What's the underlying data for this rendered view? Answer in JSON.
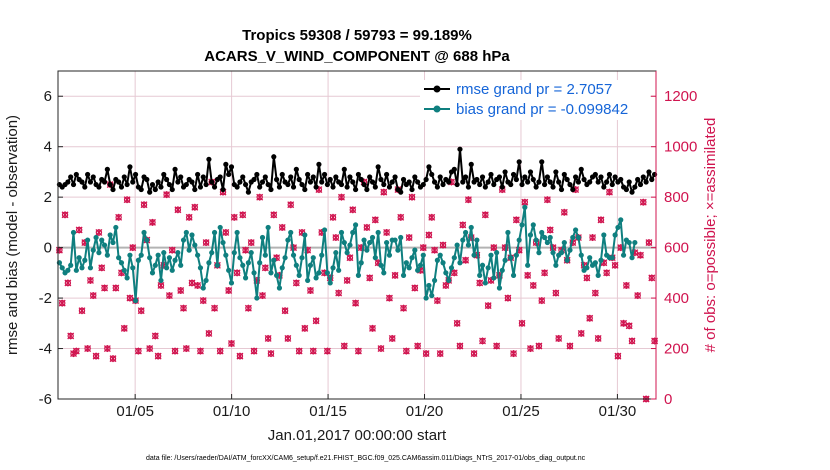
{
  "chart_data": {
    "type": "line",
    "title_line1": "Tropics 59308 / 59793 = 99.189%",
    "title_line2": "ACARS_V_WIND_COMPONENT @ 688 hPa",
    "xlabel": "Jan.01,2017 00:00:00 start",
    "ylabel_left": "rmse and bias (model - observation)",
    "ylabel_right": "# of obs: o=possible; ×=assimilated",
    "footer": "data file: /Users/raeder/DAI/ATM_forcXX/CAM6_setup/f.e21.FHIST_BGC.f09_025.CAM6assim.011/Diags_NTrS_2017-01/obs_diag_output.nc",
    "x_tick_labels": [
      "01/05",
      "01/10",
      "01/15",
      "01/20",
      "01/25",
      "01/30"
    ],
    "x_tick_days": [
      5,
      10,
      15,
      20,
      25,
      30
    ],
    "x_range_days": [
      1,
      32
    ],
    "left_ylim": [
      -6,
      7
    ],
    "left_ticks": [
      -6,
      -4,
      -2,
      0,
      2,
      4,
      6
    ],
    "right_ylim": [
      0,
      1300
    ],
    "right_ticks": [
      0,
      200,
      400,
      600,
      800,
      1000,
      1200
    ],
    "legend": [
      {
        "label": "rmse grand pr = 2.7057",
        "color": "#000000"
      },
      {
        "label": "bias grand pr = -0.099842",
        "color": "#0f7f7f"
      }
    ],
    "colors": {
      "rmse": "#000000",
      "bias": "#0f7f7f",
      "obs": "#d0144f",
      "zero_line": "#b3b3b3",
      "grid": "#e6c9d3"
    },
    "series": [
      {
        "name": "rmse",
        "values": [
          2.5,
          2.4,
          2.5,
          2.6,
          2.8,
          2.5,
          2.9,
          2.7,
          2.6,
          2.4,
          2.9,
          2.6,
          2.8,
          2.5,
          2.4,
          2.7,
          2.6,
          3.1,
          2.5,
          2.3,
          2.7,
          2.6,
          2.4,
          2.8,
          2.5,
          3.2,
          2.6,
          2.9,
          2.4,
          2.3,
          2.8,
          2.7,
          2.2,
          2.5,
          2.3,
          2.6,
          2.4,
          2.9,
          2.7,
          2.5,
          2.3,
          3.1,
          2.6,
          2.8,
          2.4,
          2.5,
          2.7,
          2.6,
          2.3,
          2.9,
          2.4,
          2.8,
          2.5,
          3.5,
          2.6,
          2.4,
          2.7,
          2.8,
          2.3,
          3.3,
          2.9,
          3.2,
          2.5,
          2.4,
          2.6,
          2.8,
          2.5,
          2.2,
          2.6,
          2.7,
          2.9,
          2.4,
          2.6,
          2.8,
          2.5,
          2.3,
          3.6,
          2.7,
          2.4,
          2.9,
          2.6,
          2.5,
          2.8,
          2.4,
          3.1,
          2.7,
          2.5,
          2.3,
          2.9,
          2.6,
          2.8,
          2.4,
          3.3,
          2.6,
          2.9,
          2.5,
          2.7,
          2.4,
          2.8,
          2.6,
          2.5,
          3.1,
          2.4,
          2.8,
          2.6,
          2.3,
          2.9,
          2.7,
          2.5,
          2.3,
          2.8,
          2.6,
          2.4,
          3.2,
          2.7,
          2.5,
          2.9,
          2.4,
          2.6,
          2.8,
          2.3,
          2.2,
          2.7,
          2.5,
          2.6,
          2.3,
          2.8,
          2.6,
          2.4,
          2.5,
          2.7,
          3.2,
          2.9,
          2.6,
          2.4,
          2.8,
          2.5,
          2.7,
          2.6,
          3.0,
          3.1,
          2.5,
          3.9,
          2.6,
          2.8,
          2.4,
          3.3,
          2.6,
          2.7,
          2.5,
          2.8,
          2.4,
          2.6,
          2.9,
          2.5,
          2.7,
          2.8,
          2.4,
          3.0,
          2.6,
          2.5,
          2.9,
          2.7,
          3.4,
          2.5,
          2.8,
          2.6,
          3.0,
          2.7,
          2.4,
          2.6,
          3.4,
          2.5,
          2.8,
          2.6,
          2.4,
          3.0,
          2.6,
          2.3,
          2.9,
          2.7,
          2.5,
          2.3,
          2.8,
          2.6,
          3.1,
          2.7,
          2.5,
          2.6,
          2.8,
          2.9,
          2.6,
          2.8,
          2.4,
          2.6,
          2.9,
          2.5,
          2.8,
          2.6,
          2.7,
          2.4,
          2.3,
          2.6,
          2.2,
          2.4,
          2.7,
          2.5,
          2.8,
          2.6,
          3.0,
          2.7,
          2.9
        ]
      },
      {
        "name": "bias",
        "values": [
          -0.6,
          -0.8,
          -1.0,
          -0.9,
          -0.7,
          0.6,
          -0.9,
          -0.4,
          -0.8,
          -0.5,
          0.3,
          -0.8,
          -0.1,
          0.4,
          -0.2,
          0.3,
          0.1,
          -0.3,
          0.5,
          0.2,
          0.8,
          -0.4,
          -0.6,
          -0.9,
          -1.2,
          -0.3,
          -0.8,
          -2.1,
          -0.5,
          -0.3,
          0.6,
          0.3,
          -0.4,
          -1.0,
          -0.7,
          -0.3,
          -1.3,
          -0.2,
          -0.8,
          -0.4,
          -0.9,
          -0.5,
          -0.2,
          -0.7,
          0.3,
          0.6,
          -0.1,
          0.5,
          0.1,
          -0.3,
          -0.8,
          -1.6,
          -1.3,
          -0.6,
          -0.2,
          0.6,
          -0.7,
          0.8,
          0.2,
          -0.3,
          -0.9,
          -1.4,
          -0.2,
          0.6,
          -0.4,
          -0.7,
          -1.2,
          -0.6,
          -0.2,
          -1.0,
          -2.0,
          -0.6,
          0.4,
          -0.3,
          0.8,
          -1.0,
          -0.5,
          -1.1,
          -1.6,
          -0.8,
          -0.4,
          0.3,
          0.6,
          -0.3,
          -0.7,
          -1.1,
          -0.4,
          0.5,
          -1.3,
          -0.7,
          -0.4,
          -1.2,
          -1.0,
          -0.3,
          0.7,
          -1.0,
          -1.4,
          -0.8,
          -0.2,
          -0.9,
          0.6,
          0.2,
          -0.2,
          0.1,
          0.6,
          0.9,
          -1.1,
          -0.6,
          0.3,
          -0.1,
          0.2,
          0.4,
          -0.4,
          0.6,
          -0.7,
          -1.0,
          0.2,
          -0.3,
          0.3,
          0.3,
          -0.1,
          0.4,
          -1.1,
          -0.6,
          -0.8,
          -0.4,
          -0.1,
          -0.9,
          -0.7,
          -0.3,
          -2.0,
          -1.5,
          -1.9,
          -1.3,
          -0.5,
          -0.3,
          -0.6,
          -1.0,
          -1.3,
          -0.8,
          -0.4,
          0.1,
          -0.6,
          0.3,
          0.6,
          0.1,
          0.8,
          -0.3,
          0.3,
          -1.1,
          -0.7,
          -1.4,
          -0.8,
          -0.3,
          -1.2,
          -0.2,
          -1.6,
          -0.9,
          -0.5,
          0.6,
          -0.4,
          -1.1,
          -0.3,
          0.3,
          0.9,
          1.6,
          -0.7,
          0.5,
          0.9,
          0.3,
          -0.2,
          0.6,
          0.4,
          0.2,
          0.4,
          -0.2,
          -0.7,
          -0.3,
          -0.2,
          0.2,
          -0.5,
          -0.1,
          0.4,
          0.7,
          0.4,
          -0.3,
          -0.9,
          -0.8,
          -0.4,
          -0.7,
          -0.6,
          -1.1,
          -0.5,
          0.5,
          -0.3,
          -0.4,
          -0.4,
          0.5,
          0.8,
          1.1,
          -0.3,
          0.3,
          0.2,
          -0.4,
          0.2
        ]
      },
      {
        "name": "obs_possible",
        "values": [
          590,
          380,
          730,
          460,
          250,
          180,
          190,
          670,
          350,
          620,
          200,
          470,
          410,
          170,
          660,
          520,
          440,
          200,
          850,
          160,
          440,
          720,
          500,
          280,
          790,
          400,
          600,
          390,
          190,
          350,
          770,
          630,
          200,
          700,
          250,
          170,
          450,
          530,
          810,
          410,
          590,
          190,
          750,
          430,
          360,
          200,
          720,
          460,
          760,
          450,
          190,
          390,
          620,
          260,
          860,
          360,
          530,
          190,
          820,
          660,
          430,
          220,
          720,
          500,
          170,
          730,
          590,
          360,
          620,
          190,
          470,
          800,
          410,
          520,
          240,
          180,
          730,
          560,
          490,
          680,
          350,
          240,
          770,
          600,
          460,
          190,
          660,
          280,
          590,
          430,
          190,
          310,
          830,
          660,
          500,
          190,
          480,
          720,
          640,
          420,
          800,
          210,
          470,
          560,
          750,
          380,
          190,
          600,
          860,
          680,
          480,
          280,
          710,
          540,
          200,
          820,
          660,
          400,
          240,
          490,
          830,
          720,
          360,
          190,
          640,
          800,
          440,
          210,
          510,
          600,
          180,
          650,
          720,
          590,
          390,
          180,
          610,
          450,
          470,
          860,
          500,
          300,
          210,
          690,
          550,
          790,
          640,
          180,
          570,
          460,
          230,
          730,
          370,
          470,
          600,
          210,
          490,
          830,
          600,
          400,
          560,
          180,
          710,
          590,
          300,
          780,
          490,
          200,
          450,
          620,
          210,
          390,
          500,
          790,
          670,
          600,
          420,
          240,
          590,
          740,
          550,
          210,
          620,
          830,
          640,
          260,
          530,
          480,
          320,
          640,
          420,
          240,
          710,
          540,
          500,
          820,
          560,
          530,
          170,
          600,
          300,
          450,
          290,
          230,
          580,
          410,
          570,
          780,
          0,
          620,
          480,
          230
        ]
      },
      {
        "name": "obs_assimilated",
        "values": [
          590,
          380,
          730,
          460,
          250,
          180,
          190,
          670,
          350,
          620,
          200,
          470,
          410,
          170,
          660,
          520,
          440,
          200,
          850,
          160,
          440,
          720,
          500,
          280,
          790,
          400,
          600,
          390,
          190,
          350,
          770,
          630,
          200,
          700,
          250,
          170,
          450,
          530,
          810,
          410,
          590,
          190,
          750,
          430,
          360,
          200,
          720,
          460,
          760,
          450,
          190,
          390,
          620,
          260,
          860,
          360,
          530,
          190,
          820,
          660,
          430,
          220,
          720,
          500,
          170,
          730,
          590,
          360,
          620,
          190,
          470,
          800,
          410,
          520,
          240,
          180,
          730,
          560,
          490,
          680,
          350,
          240,
          770,
          600,
          460,
          190,
          660,
          280,
          590,
          430,
          190,
          310,
          830,
          660,
          500,
          190,
          480,
          720,
          640,
          420,
          800,
          210,
          470,
          560,
          750,
          380,
          190,
          600,
          860,
          680,
          480,
          280,
          710,
          540,
          200,
          820,
          660,
          400,
          240,
          490,
          830,
          720,
          360,
          190,
          640,
          800,
          440,
          210,
          510,
          600,
          180,
          650,
          720,
          590,
          390,
          180,
          610,
          450,
          470,
          860,
          500,
          300,
          210,
          690,
          550,
          790,
          640,
          180,
          570,
          460,
          230,
          730,
          370,
          470,
          600,
          210,
          490,
          830,
          600,
          400,
          560,
          180,
          710,
          590,
          300,
          780,
          490,
          200,
          450,
          620,
          210,
          390,
          500,
          790,
          670,
          600,
          420,
          240,
          590,
          740,
          550,
          210,
          620,
          830,
          640,
          260,
          530,
          480,
          320,
          640,
          420,
          240,
          710,
          540,
          500,
          820,
          560,
          530,
          170,
          600,
          300,
          450,
          290,
          230,
          580,
          410,
          570,
          780,
          0,
          620,
          480,
          230
        ]
      }
    ]
  }
}
